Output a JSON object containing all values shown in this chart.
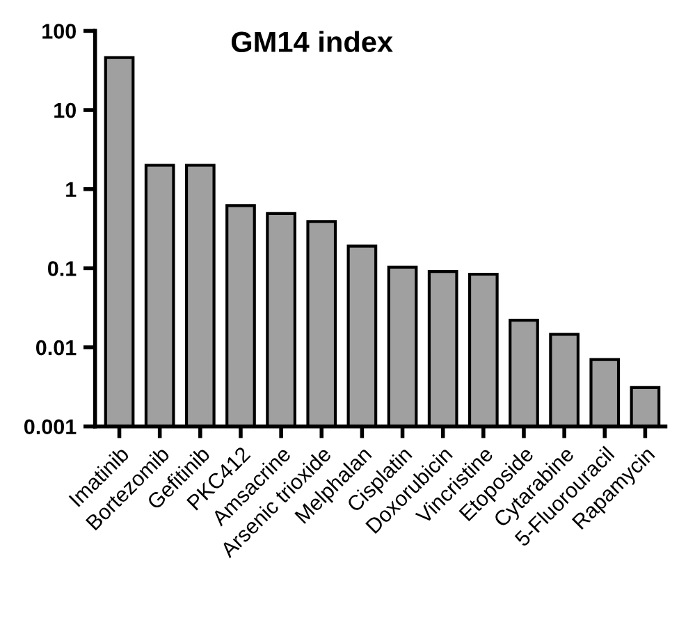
{
  "chart_data": {
    "type": "bar",
    "title": "GM14 index",
    "categories": [
      "Imatinib",
      "Bortezomib",
      "Gefitinib",
      "PKC412",
      "Amsacrine",
      "Arsenic trioxide",
      "Melphalan",
      "Cisplatin",
      "Doxorubicin",
      "Vincristine",
      "Etoposide",
      "Cytarabine",
      "5-Fluorouracil",
      "Rapamycin"
    ],
    "values": [
      46,
      2.0,
      2.0,
      0.62,
      0.49,
      0.39,
      0.19,
      0.103,
      0.091,
      0.084,
      0.022,
      0.0146,
      0.007,
      0.0031
    ],
    "color": "#a0a0a0",
    "log": true,
    "ylim": [
      0.001,
      100
    ],
    "yticks": [
      0.001,
      0.01,
      0.1,
      1,
      10,
      100
    ],
    "grid": false,
    "legend": false
  }
}
